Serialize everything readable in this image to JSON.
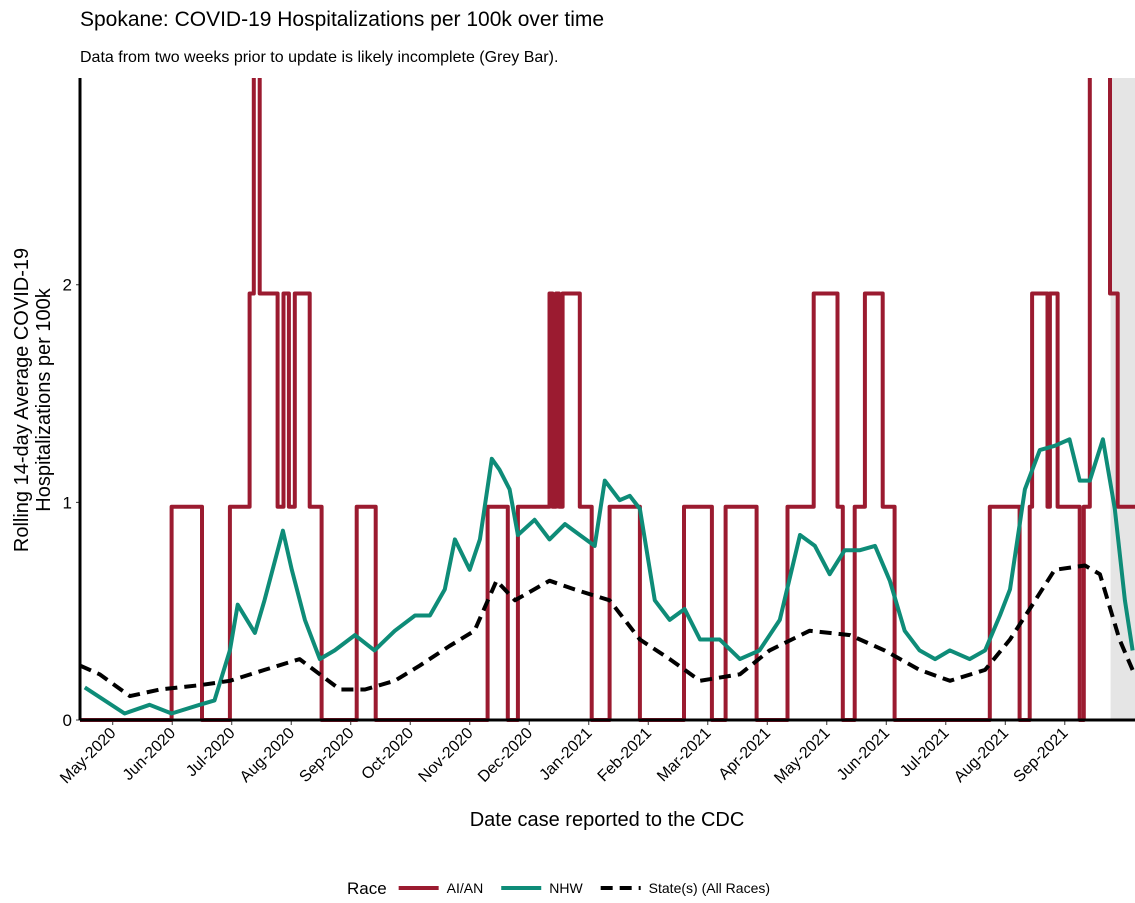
{
  "chart_data": {
    "type": "line",
    "title": "Spokane: COVID-19 Hospitalizations per 100k over time",
    "subtitle": "Data from two weeks prior to update is likely incomplete (Grey Bar).",
    "xlabel": "Date case reported to the CDC",
    "ylabel": [
      "Rolling 14-day Average COVID-19",
      "Hospitalizations per 100k"
    ],
    "legend_title": "Race",
    "legend_position": "bottom",
    "shade_x": [
      21.77,
      22.18
    ],
    "shade_color": "#e5e5e5",
    "xlim": [
      4.45,
      22.18
    ],
    "ylim": [
      0,
      2.95
    ],
    "yticks": [
      0,
      1,
      2
    ],
    "xticks": [
      {
        "value": 5,
        "label": "May-2020"
      },
      {
        "value": 6,
        "label": "Jun-2020"
      },
      {
        "value": 7,
        "label": "Jul-2020"
      },
      {
        "value": 8,
        "label": "Aug-2020"
      },
      {
        "value": 9,
        "label": "Sep-2020"
      },
      {
        "value": 10,
        "label": "Oct-2020"
      },
      {
        "value": 11,
        "label": "Nov-2020"
      },
      {
        "value": 12,
        "label": "Dec-2020"
      },
      {
        "value": 13,
        "label": "Jan-2021"
      },
      {
        "value": 14,
        "label": "Feb-2021"
      },
      {
        "value": 15,
        "label": "Mar-2021"
      },
      {
        "value": 16,
        "label": "Apr-2021"
      },
      {
        "value": 17,
        "label": "May-2021"
      },
      {
        "value": 18,
        "label": "Jun-2021"
      },
      {
        "value": 19,
        "label": "Jul-2021"
      },
      {
        "value": 20,
        "label": "Aug-2021"
      },
      {
        "value": 21,
        "label": "Sep-2021"
      }
    ],
    "grid": false,
    "series": [
      {
        "name": "AI/AN",
        "color": "#9b1b30",
        "dashed": false,
        "x": [
          4.45,
          5.99,
          5.99,
          6.5,
          6.5,
          6.97,
          6.97,
          7.3,
          7.3,
          7.37,
          7.37,
          7.47,
          7.47,
          7.77,
          7.77,
          7.87,
          7.87,
          7.96,
          7.96,
          8.06,
          8.06,
          8.31,
          8.31,
          8.51,
          8.51,
          9.1,
          9.1,
          9.42,
          9.42,
          11.3,
          11.3,
          11.64,
          11.64,
          11.81,
          11.81,
          12.34,
          12.34,
          12.39,
          12.39,
          12.45,
          12.45,
          12.5,
          12.5,
          12.56,
          12.56,
          12.85,
          12.85,
          13.05,
          13.05,
          13.35,
          13.35,
          13.86,
          13.86,
          14.6,
          14.6,
          15.07,
          15.07,
          15.3,
          15.3,
          15.82,
          15.82,
          16.34,
          16.34,
          16.78,
          16.78,
          17.18,
          17.18,
          17.27,
          17.27,
          17.47,
          17.47,
          17.64,
          17.64,
          17.94,
          17.94,
          18.14,
          18.14,
          19.74,
          19.74,
          20.24,
          20.24,
          20.41,
          20.41,
          20.45,
          20.45,
          20.71,
          20.71,
          20.75,
          20.75,
          20.88,
          20.88,
          21.25,
          21.25,
          21.32,
          21.32,
          21.42,
          21.42,
          21.76,
          21.76,
          21.89,
          21.89,
          22.18
        ],
        "values": [
          0,
          0,
          0.98,
          0.98,
          0,
          0,
          0.98,
          0.98,
          1.96,
          1.96,
          3.92,
          3.92,
          1.96,
          1.96,
          0.98,
          0.98,
          1.96,
          1.96,
          0.98,
          0.98,
          1.96,
          1.96,
          0.98,
          0.98,
          0,
          0,
          0.98,
          0.98,
          0,
          0,
          0.98,
          0.98,
          0,
          0,
          0.98,
          0.98,
          1.96,
          1.96,
          0.98,
          0.98,
          1.96,
          1.96,
          0.98,
          0.98,
          1.96,
          1.96,
          0.98,
          0.98,
          0,
          0,
          0.98,
          0.98,
          0,
          0,
          0.98,
          0.98,
          0,
          0,
          0.98,
          0.98,
          0,
          0,
          0.98,
          0.98,
          1.96,
          1.96,
          0.98,
          0.98,
          0,
          0,
          0.98,
          0.98,
          1.96,
          1.96,
          0.98,
          0.98,
          0,
          0,
          0.98,
          0.98,
          0,
          0,
          0.98,
          0.98,
          1.96,
          1.96,
          0.98,
          0.98,
          1.96,
          1.96,
          0.98,
          0.98,
          0,
          0,
          0.98,
          0.98,
          3.92,
          3.92,
          1.96,
          1.96,
          0.98,
          0.98
        ]
      },
      {
        "name": "NHW",
        "color": "#0e8c78",
        "dashed": false,
        "x": [
          4.53,
          5.2,
          5.62,
          5.99,
          6.46,
          6.71,
          6.97,
          7.1,
          7.39,
          7.55,
          7.86,
          8.01,
          8.23,
          8.48,
          8.73,
          9.07,
          9.4,
          9.74,
          10.08,
          10.33,
          10.58,
          10.75,
          11.0,
          11.17,
          11.37,
          11.5,
          11.67,
          11.81,
          12.09,
          12.34,
          12.6,
          12.85,
          13.1,
          13.27,
          13.52,
          13.69,
          13.86,
          14.11,
          14.36,
          14.61,
          14.87,
          15.2,
          15.54,
          15.87,
          16.21,
          16.55,
          16.8,
          17.05,
          17.3,
          17.55,
          17.81,
          18.06,
          18.31,
          18.56,
          18.82,
          19.07,
          19.4,
          19.66,
          19.91,
          20.08,
          20.33,
          20.58,
          20.83,
          21.08,
          21.25,
          21.42,
          21.64,
          21.84,
          22.01,
          22.14
        ],
        "values": [
          0.15,
          0.03,
          0.07,
          0.03,
          0.07,
          0.09,
          0.32,
          0.53,
          0.4,
          0.55,
          0.87,
          0.69,
          0.46,
          0.28,
          0.32,
          0.39,
          0.32,
          0.41,
          0.48,
          0.48,
          0.6,
          0.83,
          0.69,
          0.83,
          1.2,
          1.15,
          1.06,
          0.85,
          0.92,
          0.83,
          0.9,
          0.85,
          0.8,
          1.1,
          1.01,
          1.03,
          0.97,
          0.55,
          0.46,
          0.51,
          0.37,
          0.37,
          0.28,
          0.32,
          0.46,
          0.85,
          0.8,
          0.67,
          0.78,
          0.78,
          0.8,
          0.64,
          0.41,
          0.32,
          0.28,
          0.32,
          0.28,
          0.32,
          0.48,
          0.6,
          1.06,
          1.24,
          1.26,
          1.29,
          1.1,
          1.1,
          1.29,
          0.97,
          0.55,
          0.32
        ]
      },
      {
        "name": "State(s) (All Races)",
        "color": "#000000",
        "dashed": true,
        "x": [
          4.45,
          4.78,
          5.29,
          5.79,
          6.46,
          6.97,
          7.55,
          8.14,
          8.48,
          8.82,
          9.24,
          9.74,
          10.16,
          10.66,
          11.08,
          11.45,
          11.76,
          12.34,
          12.76,
          13.35,
          13.86,
          14.36,
          14.87,
          15.54,
          16.04,
          16.71,
          17.39,
          17.97,
          18.56,
          19.07,
          19.66,
          20.08,
          20.41,
          20.83,
          21.34,
          21.59,
          21.92,
          22.14
        ],
        "values": [
          0.25,
          0.21,
          0.11,
          0.14,
          0.16,
          0.18,
          0.23,
          0.28,
          0.21,
          0.14,
          0.14,
          0.18,
          0.25,
          0.34,
          0.41,
          0.64,
          0.55,
          0.64,
          0.6,
          0.55,
          0.37,
          0.28,
          0.18,
          0.21,
          0.32,
          0.41,
          0.39,
          0.32,
          0.23,
          0.18,
          0.23,
          0.37,
          0.51,
          0.69,
          0.71,
          0.67,
          0.37,
          0.23
        ]
      }
    ]
  }
}
